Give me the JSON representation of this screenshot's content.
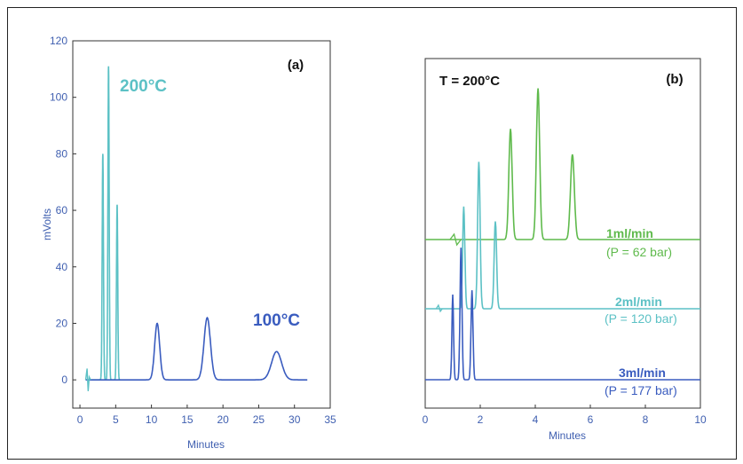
{
  "colors": {
    "hot": "#5cc1c5",
    "cool": "#3a5cbf",
    "green": "#5fba4c",
    "axis": "#3f5fb0"
  },
  "chart_data": [
    {
      "type": "line",
      "panel_label": "(a)",
      "xlabel": "Minutes",
      "ylabel": "mVolts",
      "xlim": [
        -1,
        35
      ],
      "ylim": [
        -10,
        120
      ],
      "xticks": [
        0,
        5,
        10,
        15,
        20,
        25,
        30,
        35
      ],
      "yticks": [
        0,
        20,
        40,
        60,
        80,
        100,
        120
      ],
      "grid": false,
      "series": [
        {
          "name": "200°C",
          "color": "#5cc1c5",
          "baseline": 0,
          "x_range": [
            0.8,
            5.6
          ],
          "peaks": [
            {
              "x": 3.2,
              "height": 80
            },
            {
              "x": 4.0,
              "height": 111
            },
            {
              "x": 5.2,
              "height": 62
            }
          ]
        },
        {
          "name": "100°C",
          "color": "#3a5cbf",
          "baseline": 0,
          "x_range": [
            0.8,
            31.8
          ],
          "peaks": [
            {
              "x": 10.8,
              "height": 20
            },
            {
              "x": 17.8,
              "height": 22
            },
            {
              "x": 27.5,
              "height": 10
            }
          ]
        }
      ]
    },
    {
      "type": "line",
      "panel_label": "(b)",
      "annotation": "T = 200°C",
      "xlabel": "Minutes",
      "xlim": [
        0,
        10
      ],
      "xticks": [
        0,
        2,
        4,
        6,
        8,
        10
      ],
      "grid": false,
      "series": [
        {
          "name": "1ml/min",
          "pressure": "(P = 62 bar)",
          "color": "#5fba4c",
          "x_range": [
            0,
            10
          ],
          "peaks": [
            {
              "x": 3.1,
              "relative_height": 0.52
            },
            {
              "x": 4.1,
              "relative_height": 0.71
            },
            {
              "x": 5.35,
              "relative_height": 0.4
            }
          ]
        },
        {
          "name": "2ml/min",
          "pressure": "(P = 120 bar)",
          "color": "#5cc1c5",
          "x_range": [
            0,
            10
          ],
          "peaks": [
            {
              "x": 1.4,
              "relative_height": 0.48
            },
            {
              "x": 1.95,
              "relative_height": 0.69
            },
            {
              "x": 2.55,
              "relative_height": 0.41
            }
          ]
        },
        {
          "name": "3ml/min",
          "pressure": "(P = 177 bar)",
          "color": "#3a5cbf",
          "x_range": [
            0,
            10
          ],
          "peaks": [
            {
              "x": 1.0,
              "relative_height": 0.4
            },
            {
              "x": 1.3,
              "relative_height": 0.62
            },
            {
              "x": 1.7,
              "relative_height": 0.42
            }
          ]
        }
      ]
    }
  ]
}
